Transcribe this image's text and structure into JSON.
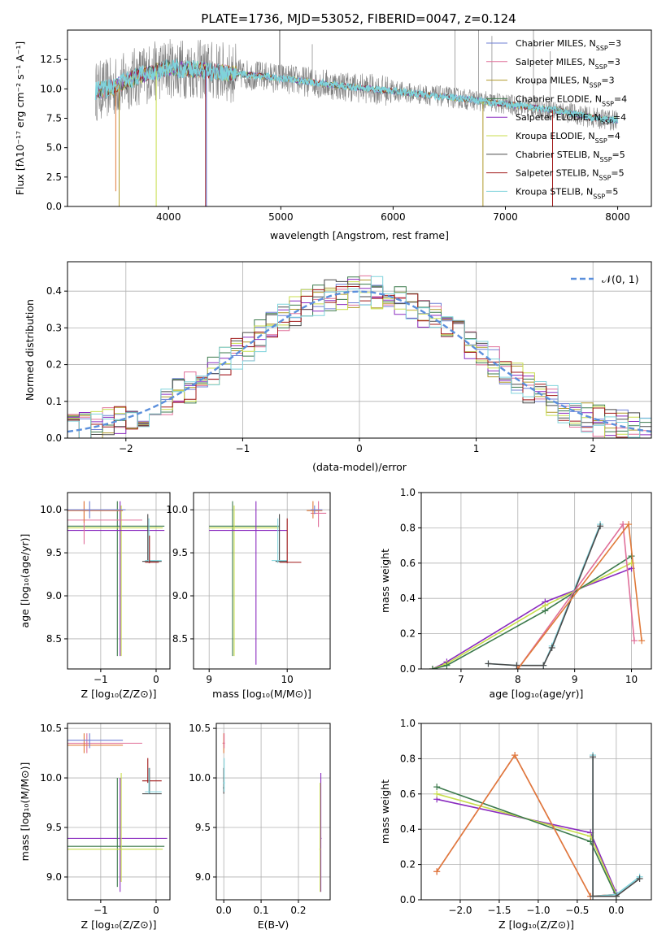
{
  "figure": {
    "title": "PLATE=1736, MJD=53052, FIBERID=0047, z=0.124"
  },
  "colors": {
    "chabrier_miles": "#6f7fd6",
    "salpeter_miles": "#e0709a",
    "kroupa_miles": "#b09a2c",
    "chabrier_elodie": "#3c7a4c",
    "salpeter_elodie": "#8a2bbf",
    "kroupa_elodie": "#c8de4c",
    "chabrier_stelib": "#4a4a4a",
    "salpeter_stelib": "#a01818",
    "kroupa_stelib": "#7fd3dc",
    "data": "#808080",
    "orange": "#e07a3a",
    "normal": "#5b8fdc"
  },
  "chart_data": [
    {
      "id": "spectrum",
      "type": "line",
      "title": "PLATE=1736, MJD=53052, FIBERID=0047, z=0.124",
      "xlabel": "wavelength [Angstrom, rest frame]",
      "ylabel": "Flux [fλ10⁻¹⁷ erg cm⁻² s⁻¹ A⁻¹]",
      "xlim": [
        3100,
        8300
      ],
      "ylim": [
        0,
        15
      ],
      "xticks": [
        4000,
        5000,
        6000,
        7000,
        8000
      ],
      "yticks": [
        "0.0",
        "2.5",
        "5.0",
        "7.5",
        "10.0",
        "12.5"
      ],
      "grid": false,
      "legend_position": "top-right",
      "legend": [
        {
          "text": "Chabrier MILES, N",
          "sub": "SSP",
          "tail": "=3",
          "color_key": "chabrier_miles"
        },
        {
          "text": "Salpeter MILES, N",
          "sub": "SSP",
          "tail": "=3",
          "color_key": "salpeter_miles"
        },
        {
          "text": "Kroupa MILES, N",
          "sub": "SSP",
          "tail": "=3",
          "color_key": "kroupa_miles"
        },
        {
          "text": "Chabrier ELODIE, N",
          "sub": "SSP",
          "tail": "=4",
          "color_key": "chabrier_elodie"
        },
        {
          "text": "Salpeter ELODIE, N",
          "sub": "SSP",
          "tail": "=4",
          "color_key": "salpeter_elodie"
        },
        {
          "text": "Kroupa ELODIE, N",
          "sub": "SSP",
          "tail": "=4",
          "color_key": "kroupa_elodie"
        },
        {
          "text": "Chabrier STELIB, N",
          "sub": "SSP",
          "tail": "=5",
          "color_key": "chabrier_stelib"
        },
        {
          "text": "Salpeter STELIB, N",
          "sub": "SSP",
          "tail": "=5",
          "color_key": "salpeter_stelib"
        },
        {
          "text": "Kroupa STELIB, N",
          "sub": "SSP",
          "tail": "=5",
          "color_key": "kroupa_stelib"
        }
      ],
      "model_continuum": {
        "x": [
          3350,
          3500,
          3700,
          4000,
          4300,
          4600,
          5000,
          5500,
          6000,
          6500,
          7000,
          7500,
          7800,
          8000
        ],
        "y": [
          9.8,
          10.1,
          11.0,
          11.8,
          11.6,
          11.3,
          10.9,
          10.3,
          9.8,
          9.3,
          8.7,
          8.1,
          7.5,
          7.3
        ]
      },
      "dips": [
        {
          "x": 3530,
          "y": 1.3
        },
        {
          "x": 3560,
          "y": 0.0
        },
        {
          "x": 3890,
          "y": 0.0
        },
        {
          "x": 4330,
          "y": 0.0
        },
        {
          "x": 6800,
          "y": 0.0
        },
        {
          "x": 7420,
          "y": 0.0
        }
      ],
      "spikes": [
        {
          "x": 4990,
          "y": 15.0
        },
        {
          "x": 5280,
          "y": 13.8
        },
        {
          "x": 6550,
          "y": 15.0
        },
        {
          "x": 6760,
          "y": 15.0
        },
        {
          "x": 6880,
          "y": 14.5
        },
        {
          "x": 7250,
          "y": 15.0
        },
        {
          "x": 7400,
          "y": 13.2
        }
      ]
    },
    {
      "id": "residuals",
      "type": "histogram",
      "xlabel": "(data-model)/error",
      "ylabel": "Normed distribution",
      "xlim": [
        -2.5,
        2.5
      ],
      "ylim": [
        0,
        0.48
      ],
      "xticks": [
        "−2",
        "−1",
        "0",
        "1",
        "2"
      ],
      "yticks": [
        "0.0",
        "0.1",
        "0.2",
        "0.3",
        "0.4"
      ],
      "grid": true,
      "legend_position": "top-right",
      "legend": "𝒩(0, 1)",
      "bin_width": 0.1
    },
    {
      "id": "age_vs_Z",
      "type": "errorbar",
      "xlabel": "Z [log₁₀(Z/Z⊙)]",
      "ylabel": "age  [log₁₀(age/yr)]",
      "xlim": [
        -1.6,
        0.25
      ],
      "ylim": [
        8.15,
        10.2
      ],
      "xticks": [
        {
          "v": -1,
          "t": "−1"
        },
        {
          "v": 0,
          "t": "0"
        }
      ],
      "yticks": [
        {
          "v": 8.5,
          "t": "8.5"
        },
        {
          "v": 9.0,
          "t": "9.0"
        },
        {
          "v": 9.5,
          "t": "9.5"
        },
        {
          "v": 10.0,
          "t": "10.0"
        }
      ],
      "grid": true
    },
    {
      "id": "age_vs_mass",
      "type": "errorbar",
      "xlabel": "mass [log₁₀(M/M⊙)]",
      "ylabel": "",
      "xlim": [
        8.8,
        10.55
      ],
      "ylim": [
        8.15,
        10.2
      ],
      "xticks": [
        {
          "v": 9,
          "t": "9"
        },
        {
          "v": 10,
          "t": "10"
        }
      ],
      "yticks": [
        {
          "v": 8.5,
          "t": "8.5"
        },
        {
          "v": 9.0,
          "t": "9.0"
        },
        {
          "v": 9.5,
          "t": "9.5"
        },
        {
          "v": 10.0,
          "t": "10.0"
        }
      ],
      "grid": true
    },
    {
      "id": "weight_vs_age",
      "type": "line",
      "xlabel": "age  [log₁₀(age/yr)]",
      "ylabel": "mass weight",
      "xlim": [
        6.3,
        10.35
      ],
      "ylim": [
        0,
        1
      ],
      "xticks": [
        {
          "v": 7,
          "t": "7"
        },
        {
          "v": 8,
          "t": "8"
        },
        {
          "v": 9,
          "t": "9"
        },
        {
          "v": 10,
          "t": "10"
        }
      ],
      "yticks": [
        {
          "v": 0,
          "t": "0.0"
        },
        {
          "v": 0.2,
          "t": "0.2"
        },
        {
          "v": 0.4,
          "t": "0.4"
        },
        {
          "v": 0.6,
          "t": "0.6"
        },
        {
          "v": 0.8,
          "t": "0.8"
        },
        {
          "v": 1.0,
          "t": "1.0"
        }
      ],
      "grid": true,
      "series": [
        {
          "color_key": "salpeter_elodie",
          "x": [
            6.5,
            6.75,
            8.48,
            10.0
          ],
          "y": [
            0.0,
            0.04,
            0.38,
            0.57
          ]
        },
        {
          "color_key": "kroupa_elodie",
          "x": [
            6.5,
            6.75,
            8.48,
            10.0
          ],
          "y": [
            0.0,
            0.03,
            0.36,
            0.6
          ]
        },
        {
          "color_key": "chabrier_elodie",
          "x": [
            6.5,
            6.75,
            8.48,
            10.0
          ],
          "y": [
            0.0,
            0.02,
            0.33,
            0.64
          ]
        },
        {
          "color_key": "kroupa_stelib",
          "x": [
            7.48,
            7.98,
            8.45,
            8.6,
            9.45
          ],
          "y": [
            0.03,
            0.02,
            0.02,
            0.13,
            0.82
          ]
        },
        {
          "color_key": "chabrier_stelib",
          "x": [
            7.48,
            7.98,
            8.45,
            8.6,
            9.45
          ],
          "y": [
            0.03,
            0.02,
            0.02,
            0.12,
            0.81
          ]
        },
        {
          "color_key": "salpeter_miles",
          "x": [
            8.0,
            9.85,
            10.05
          ],
          "y": [
            0.0,
            0.82,
            0.16
          ]
        },
        {
          "color_key": "orange",
          "x": [
            8.0,
            9.95,
            10.18
          ],
          "y": [
            0.0,
            0.82,
            0.16
          ]
        }
      ]
    },
    {
      "id": "mass_vs_Z",
      "type": "errorbar",
      "xlabel": "Z [log₁₀(Z/Z⊙)]",
      "ylabel": "mass [log₁₀(M/M⊙)]",
      "xlim": [
        -1.6,
        0.25
      ],
      "ylim": [
        8.77,
        10.55
      ],
      "xticks": [
        {
          "v": -1,
          "t": "−1"
        },
        {
          "v": 0,
          "t": "0"
        }
      ],
      "yticks": [
        {
          "v": 9.0,
          "t": "9.0"
        },
        {
          "v": 9.5,
          "t": "9.5"
        },
        {
          "v": 10.0,
          "t": "10.0"
        },
        {
          "v": 10.5,
          "t": "10.5"
        }
      ],
      "grid": true
    },
    {
      "id": "mass_vs_EBV",
      "type": "errorbar",
      "xlabel": "E(B-V)",
      "ylabel": "",
      "xlim": [
        -0.02,
        0.285
      ],
      "ylim": [
        8.77,
        10.55
      ],
      "xticks": [
        {
          "v": 0.0,
          "t": "0.0"
        },
        {
          "v": 0.1,
          "t": "0.1"
        },
        {
          "v": 0.2,
          "t": "0.2"
        }
      ],
      "yticks": [
        {
          "v": 9.0,
          "t": "9.0"
        },
        {
          "v": 9.5,
          "t": "9.5"
        },
        {
          "v": 10.0,
          "t": "10.0"
        },
        {
          "v": 10.5,
          "t": "10.5"
        }
      ],
      "grid": true
    },
    {
      "id": "weight_vs_Z",
      "type": "line",
      "xlabel": "Z [log₁₀(Z/Z⊙)]",
      "ylabel": "mass weight",
      "xlim": [
        -2.5,
        0.45
      ],
      "ylim": [
        0,
        1
      ],
      "xticks": [
        {
          "v": -2.0,
          "t": "−2.0"
        },
        {
          "v": -1.5,
          "t": "−1.5"
        },
        {
          "v": -1.0,
          "t": "−1.0"
        },
        {
          "v": -0.5,
          "t": "−0.5"
        },
        {
          "v": 0.0,
          "t": "0.0"
        }
      ],
      "yticks": [
        {
          "v": 0,
          "t": "0.0"
        },
        {
          "v": 0.2,
          "t": "0.2"
        },
        {
          "v": 0.4,
          "t": "0.4"
        },
        {
          "v": 0.6,
          "t": "0.6"
        },
        {
          "v": 0.8,
          "t": "0.8"
        },
        {
          "v": 1.0,
          "t": "1.0"
        }
      ],
      "grid": true,
      "series": [
        {
          "color_key": "salpeter_elodie",
          "x": [
            -2.3,
            -0.33,
            0.0
          ],
          "y": [
            0.57,
            0.38,
            0.04
          ]
        },
        {
          "color_key": "kroupa_elodie",
          "x": [
            -2.3,
            -0.33,
            0.0
          ],
          "y": [
            0.6,
            0.36,
            0.03
          ]
        },
        {
          "color_key": "chabrier_elodie",
          "x": [
            -2.3,
            -0.33,
            0.0
          ],
          "y": [
            0.64,
            0.33,
            0.02
          ]
        },
        {
          "color_key": "salpeter_miles",
          "x": [
            -2.3,
            -1.3,
            -0.33,
            0.0
          ],
          "y": [
            0.16,
            0.82,
            0.02,
            0.03
          ]
        },
        {
          "color_key": "orange",
          "x": [
            -2.3,
            -1.3,
            -0.33,
            0.0
          ],
          "y": [
            0.16,
            0.82,
            0.02,
            0.03
          ]
        },
        {
          "color_key": "kroupa_stelib",
          "x": [
            -0.3,
            -0.3,
            0.0,
            0.3
          ],
          "y": [
            0.82,
            0.02,
            0.03,
            0.13
          ]
        },
        {
          "color_key": "chabrier_stelib",
          "x": [
            -0.3,
            -0.3,
            0.0,
            0.3
          ],
          "y": [
            0.81,
            0.02,
            0.02,
            0.12
          ]
        }
      ]
    }
  ]
}
